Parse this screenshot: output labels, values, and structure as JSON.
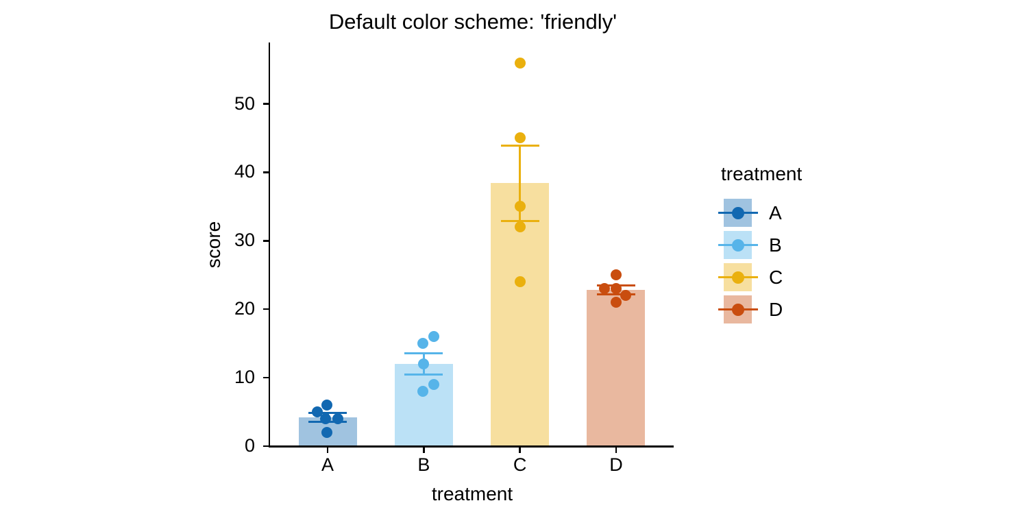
{
  "chart_data": {
    "type": "bar",
    "subtype": "bars with jittered individual data points and mean ± SE error bars",
    "title": "Default color scheme: 'friendly'",
    "xlabel": "treatment",
    "ylabel": "score",
    "categories": [
      "A",
      "B",
      "C",
      "D"
    ],
    "yticks": [
      0,
      10,
      20,
      30,
      40,
      50
    ],
    "ylim": [
      0,
      59
    ],
    "grid": false,
    "legend": {
      "title": "treatment",
      "position": "right",
      "entries": [
        "A",
        "B",
        "C",
        "D"
      ]
    },
    "series": [
      {
        "category": "A",
        "color": "#1268B1",
        "fill": "#A0C3E0",
        "mean": 4.2,
        "se": 0.66,
        "values": [
          6,
          5,
          4,
          4,
          2
        ],
        "jitter_dx": [
          -1,
          -15,
          -3,
          15,
          -1
        ]
      },
      {
        "category": "B",
        "color": "#56B4E9",
        "fill": "#BBE1F6",
        "mean": 12.0,
        "se": 1.58,
        "values": [
          16,
          15,
          12,
          9,
          8
        ],
        "jitter_dx": [
          15,
          -1,
          0,
          15,
          -1
        ]
      },
      {
        "category": "C",
        "color": "#EAB00E",
        "fill": "#F7DF9F",
        "mean": 38.4,
        "se": 5.54,
        "values": [
          56,
          45,
          35,
          32,
          24
        ],
        "jitter_dx": [
          0,
          0,
          0,
          0,
          0
        ]
      },
      {
        "category": "D",
        "color": "#C94D0F",
        "fill": "#E9B89F",
        "mean": 22.8,
        "se": 0.66,
        "values": [
          25,
          23,
          23,
          22,
          21
        ],
        "jitter_dx": [
          0,
          -17,
          0,
          14,
          0
        ]
      }
    ]
  }
}
